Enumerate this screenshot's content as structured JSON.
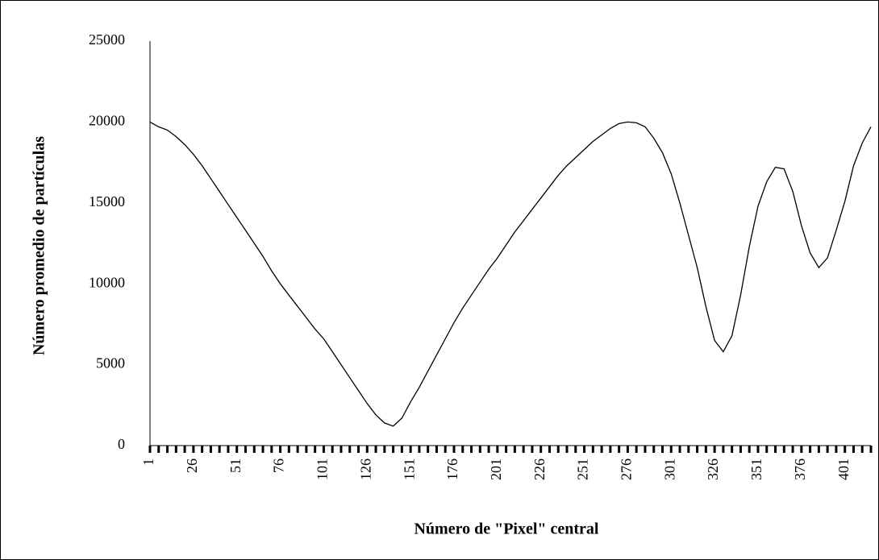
{
  "chart_data": {
    "type": "line",
    "xlabel": "Número de \"Pixel\" central",
    "ylabel": "Número promedio de partículas",
    "color": "#000000",
    "x": [
      1,
      6,
      11,
      16,
      21,
      26,
      31,
      36,
      41,
      46,
      51,
      56,
      61,
      66,
      71,
      76,
      81,
      86,
      91,
      96,
      101,
      106,
      111,
      116,
      121,
      126,
      131,
      136,
      141,
      146,
      151,
      156,
      161,
      166,
      171,
      176,
      181,
      186,
      191,
      196,
      201,
      206,
      211,
      216,
      221,
      226,
      231,
      236,
      241,
      246,
      251,
      256,
      261,
      266,
      271,
      276,
      281,
      286,
      291,
      296,
      301,
      306,
      311,
      316,
      321,
      326,
      331,
      336,
      341,
      346,
      351,
      356,
      361,
      366,
      371,
      376,
      381,
      386,
      391,
      396,
      401,
      406,
      411,
      416
    ],
    "values": [
      20000,
      19700,
      19500,
      19100,
      18600,
      18000,
      17300,
      16500,
      15700,
      14900,
      14100,
      13300,
      12500,
      11700,
      10800,
      10000,
      9300,
      8600,
      7900,
      7200,
      6600,
      5800,
      5000,
      4200,
      3400,
      2600,
      1900,
      1400,
      1200,
      1700,
      2700,
      3600,
      4600,
      5600,
      6600,
      7600,
      8500,
      9300,
      10100,
      10900,
      11600,
      12400,
      13200,
      13900,
      14600,
      15300,
      16000,
      16700,
      17300,
      17800,
      18300,
      18800,
      19200,
      19600,
      19900,
      20000,
      19950,
      19700,
      19000,
      18100,
      16800,
      15000,
      13000,
      11000,
      8600,
      6500,
      5800,
      6800,
      9300,
      12300,
      14800,
      16300,
      17200,
      17100,
      15700,
      13600,
      11900,
      11000,
      11600,
      13300,
      15100,
      17300,
      18700,
      19700
    ],
    "xlim": [
      1,
      416
    ],
    "xticks": [
      1,
      26,
      51,
      76,
      101,
      126,
      151,
      176,
      201,
      226,
      251,
      276,
      301,
      326,
      351,
      376,
      401
    ],
    "ylim": [
      0,
      25000
    ],
    "yticks": [
      0,
      5000,
      10000,
      15000,
      20000,
      25000
    ]
  }
}
